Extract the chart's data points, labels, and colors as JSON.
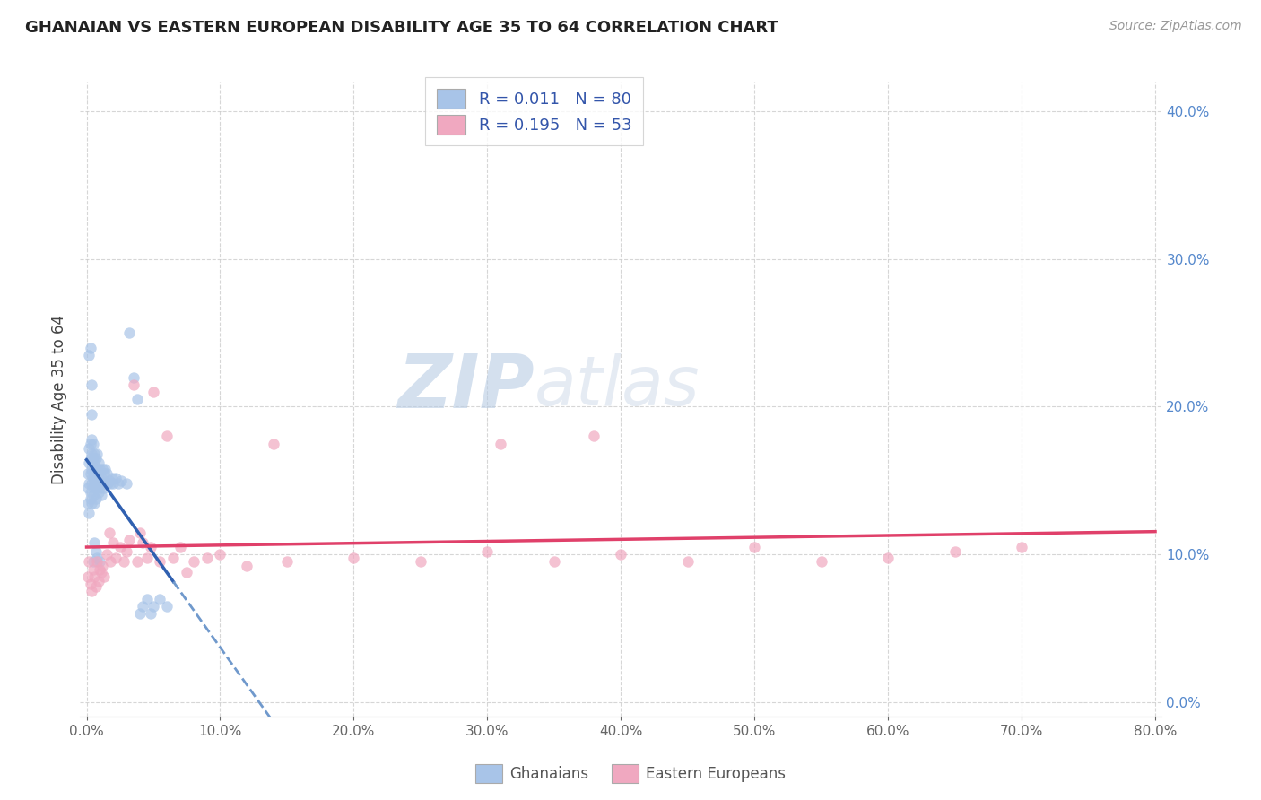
{
  "title": "GHANAIAN VS EASTERN EUROPEAN DISABILITY AGE 35 TO 64 CORRELATION CHART",
  "source": "Source: ZipAtlas.com",
  "ylabel": "Disability Age 35 to 64",
  "watermark_top": "ZIP",
  "watermark_bottom": "atlas",
  "legend_label1": "Ghanaians",
  "legend_label2": "Eastern Europeans",
  "r1": 0.011,
  "n1": 80,
  "r2": 0.195,
  "n2": 53,
  "color1": "#a8c4e8",
  "color2": "#f0a8c0",
  "line_color1": "#3060b0",
  "line_color2": "#e0406a",
  "xlim": [
    -0.005,
    0.805
  ],
  "ylim": [
    -0.01,
    0.42
  ],
  "xticks": [
    0.0,
    0.1,
    0.2,
    0.3,
    0.4,
    0.5,
    0.6,
    0.7,
    0.8
  ],
  "yticks": [
    0.0,
    0.1,
    0.2,
    0.3,
    0.4
  ],
  "xticklabels": [
    "0.0%",
    "10.0%",
    "20.0%",
    "30.0%",
    "40.0%",
    "50.0%",
    "60.0%",
    "70.0%",
    "80.0%"
  ],
  "yticklabels": [
    "0.0%",
    "10.0%",
    "20.0%",
    "30.0%",
    "40.0%"
  ],
  "ghanaian_x": [
    0.001,
    0.001,
    0.001,
    0.002,
    0.002,
    0.002,
    0.002,
    0.003,
    0.003,
    0.003,
    0.003,
    0.003,
    0.004,
    0.004,
    0.004,
    0.004,
    0.004,
    0.005,
    0.005,
    0.005,
    0.005,
    0.005,
    0.005,
    0.006,
    0.006,
    0.006,
    0.006,
    0.006,
    0.007,
    0.007,
    0.007,
    0.007,
    0.008,
    0.008,
    0.008,
    0.009,
    0.009,
    0.009,
    0.01,
    0.01,
    0.01,
    0.011,
    0.011,
    0.012,
    0.012,
    0.013,
    0.013,
    0.014,
    0.014,
    0.015,
    0.015,
    0.016,
    0.017,
    0.018,
    0.019,
    0.02,
    0.022,
    0.024,
    0.026,
    0.03,
    0.032,
    0.035,
    0.038,
    0.04,
    0.042,
    0.045,
    0.048,
    0.05,
    0.055,
    0.06,
    0.002,
    0.003,
    0.004,
    0.004,
    0.005,
    0.005,
    0.006,
    0.007,
    0.008,
    0.01
  ],
  "ghanaian_y": [
    0.145,
    0.135,
    0.155,
    0.128,
    0.148,
    0.162,
    0.172,
    0.142,
    0.155,
    0.165,
    0.175,
    0.138,
    0.148,
    0.158,
    0.168,
    0.178,
    0.135,
    0.145,
    0.155,
    0.165,
    0.175,
    0.14,
    0.152,
    0.148,
    0.158,
    0.168,
    0.135,
    0.162,
    0.145,
    0.155,
    0.165,
    0.138,
    0.148,
    0.158,
    0.168,
    0.142,
    0.152,
    0.162,
    0.148,
    0.158,
    0.145,
    0.14,
    0.152,
    0.148,
    0.158,
    0.145,
    0.155,
    0.148,
    0.158,
    0.148,
    0.155,
    0.148,
    0.15,
    0.148,
    0.152,
    0.148,
    0.152,
    0.148,
    0.15,
    0.148,
    0.25,
    0.22,
    0.205,
    0.06,
    0.065,
    0.07,
    0.06,
    0.065,
    0.07,
    0.065,
    0.235,
    0.24,
    0.215,
    0.195,
    0.152,
    0.095,
    0.108,
    0.102,
    0.098,
    0.095
  ],
  "eastern_x": [
    0.001,
    0.002,
    0.003,
    0.004,
    0.005,
    0.006,
    0.007,
    0.008,
    0.009,
    0.01,
    0.011,
    0.012,
    0.013,
    0.015,
    0.017,
    0.018,
    0.02,
    0.022,
    0.025,
    0.028,
    0.03,
    0.032,
    0.035,
    0.038,
    0.04,
    0.042,
    0.045,
    0.048,
    0.05,
    0.055,
    0.06,
    0.065,
    0.07,
    0.075,
    0.08,
    0.09,
    0.1,
    0.12,
    0.15,
    0.2,
    0.25,
    0.3,
    0.35,
    0.4,
    0.45,
    0.5,
    0.55,
    0.6,
    0.65,
    0.7,
    0.14,
    0.31,
    0.38
  ],
  "eastern_y": [
    0.085,
    0.095,
    0.08,
    0.075,
    0.09,
    0.085,
    0.078,
    0.095,
    0.082,
    0.09,
    0.088,
    0.092,
    0.085,
    0.1,
    0.115,
    0.095,
    0.108,
    0.098,
    0.105,
    0.095,
    0.102,
    0.11,
    0.215,
    0.095,
    0.115,
    0.108,
    0.098,
    0.105,
    0.21,
    0.095,
    0.18,
    0.098,
    0.105,
    0.088,
    0.095,
    0.098,
    0.1,
    0.092,
    0.095,
    0.098,
    0.095,
    0.102,
    0.095,
    0.1,
    0.095,
    0.105,
    0.095,
    0.098,
    0.102,
    0.105,
    0.175,
    0.175,
    0.18
  ]
}
